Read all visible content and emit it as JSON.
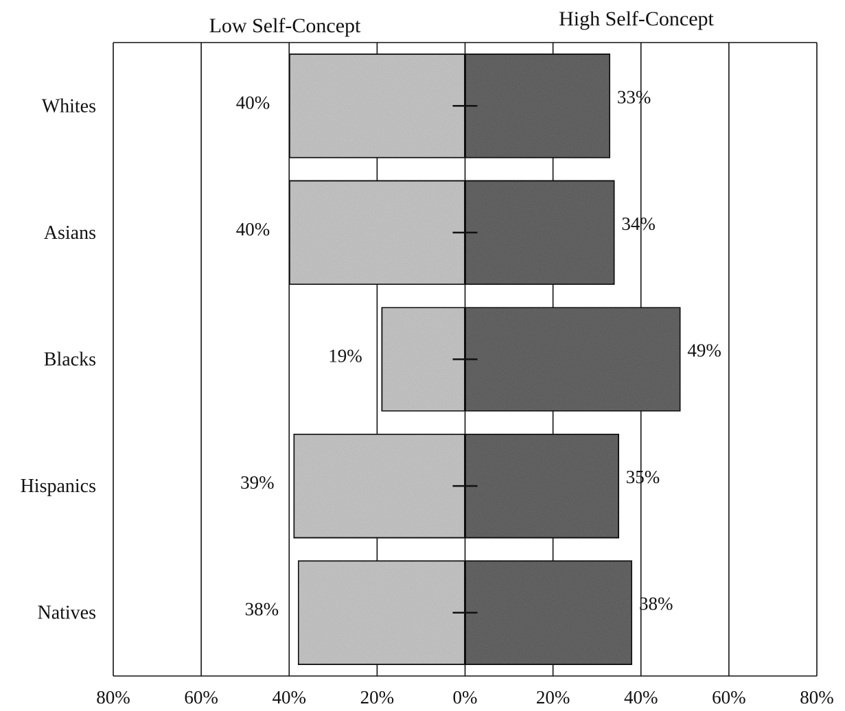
{
  "chart_data": {
    "type": "bar",
    "orientation": "horizontal-diverging",
    "categories": [
      "Whites",
      "Asians",
      "Blacks",
      "Hispanics",
      "Natives"
    ],
    "series": [
      {
        "name": "Low Self-Concept",
        "direction": "left",
        "values": [
          40,
          40,
          19,
          39,
          38
        ]
      },
      {
        "name": "High Self-Concept",
        "direction": "right",
        "values": [
          33,
          34,
          49,
          35,
          38
        ]
      }
    ],
    "data_labels": {
      "low": [
        "40%",
        "40%",
        "19%",
        "39%",
        "38%"
      ],
      "high": [
        "33%",
        "34%",
        "49%",
        "35%",
        "38%"
      ]
    },
    "x_tick_labels": [
      "80%",
      "60%",
      "40%",
      "20%",
      "0%",
      "20%",
      "40%",
      "60%",
      "80%"
    ],
    "x_ticks": [
      -80,
      -60,
      -40,
      -20,
      0,
      20,
      40,
      60,
      80
    ],
    "xlim": [
      -80,
      80
    ],
    "grid": "vertical",
    "legend": "none",
    "colors": {
      "low": "#c9c9c9",
      "high": "#6e6e6e",
      "outline": "#111111",
      "grid": "#111111"
    }
  }
}
